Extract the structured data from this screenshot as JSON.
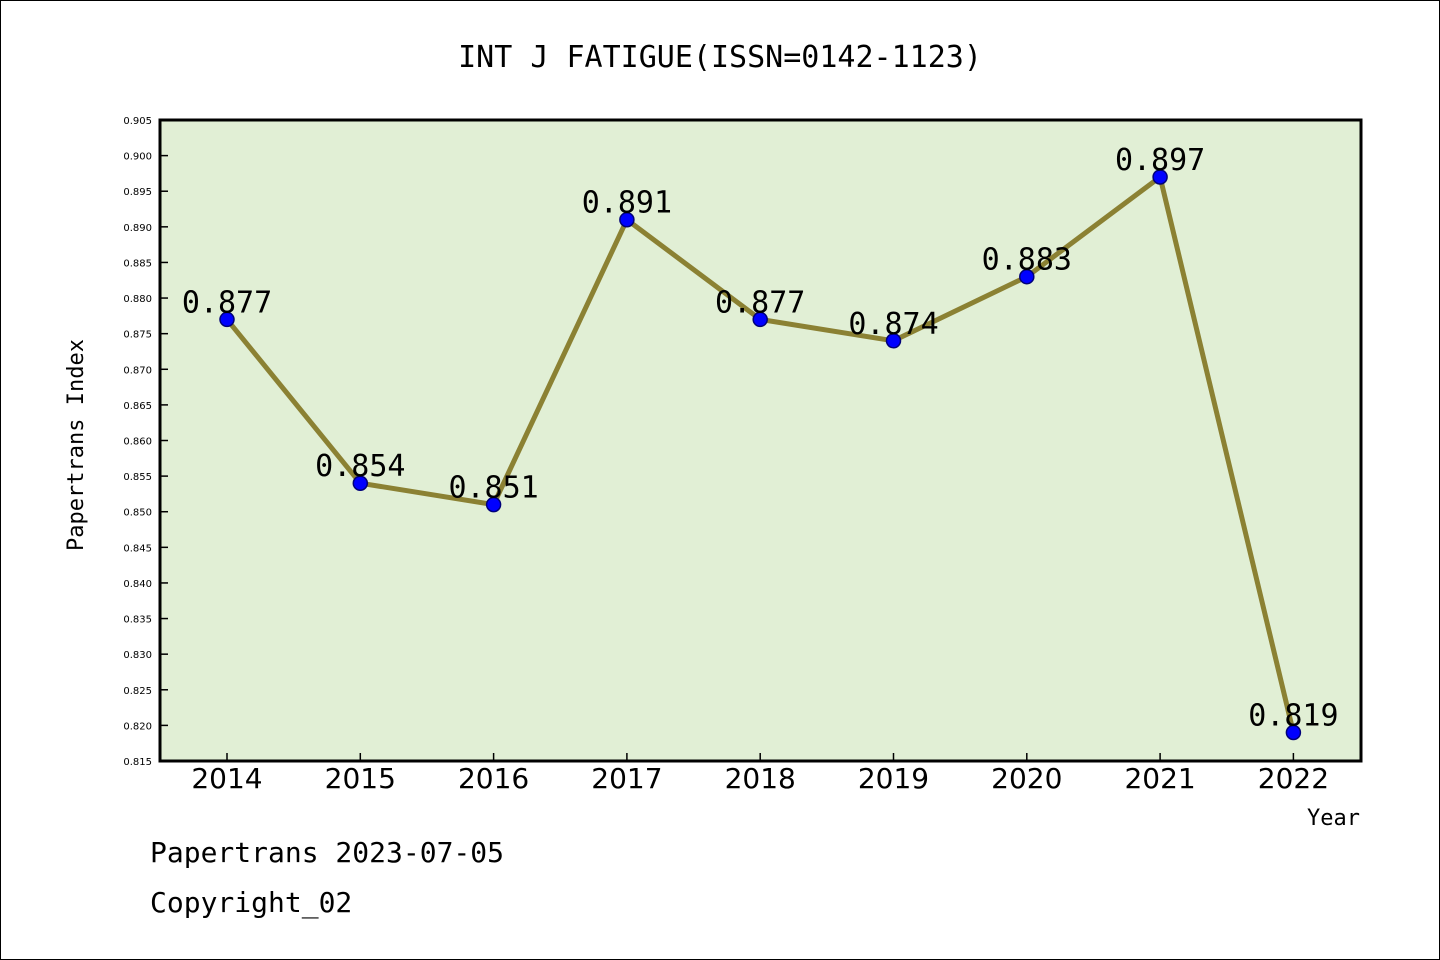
{
  "footer": {
    "line1": "Papertrans 2023-07-05",
    "line2": "Copyright_02"
  },
  "colors": {
    "plot_background": "#e1efd5",
    "line": "#8b8133",
    "marker_fill": "#0000ff",
    "marker_edge": "#00007a"
  },
  "chart_data": {
    "type": "line",
    "title": "INT J FATIGUE(ISSN=0142-1123)",
    "xlabel": "Year",
    "ylabel": "Papertrans Index",
    "categories": [
      "2014",
      "2015",
      "2016",
      "2017",
      "2018",
      "2019",
      "2020",
      "2021",
      "2022"
    ],
    "series": [
      {
        "values": [
          0.877,
          0.854,
          0.851,
          0.891,
          0.877,
          0.874,
          0.883,
          0.897,
          0.819
        ],
        "labels": [
          "0.877",
          "0.854",
          "0.851",
          "0.891",
          "0.877",
          "0.874",
          "0.883",
          "0.897",
          "0.819"
        ]
      }
    ],
    "ylim": [
      0.815,
      0.905
    ],
    "yticks": [
      "0.815",
      "0.820",
      "0.825",
      "0.830",
      "0.835",
      "0.840",
      "0.845",
      "0.850",
      "0.855",
      "0.860",
      "0.865",
      "0.870",
      "0.875",
      "0.880",
      "0.885",
      "0.890",
      "0.895",
      "0.900",
      "0.905"
    ],
    "grid": false,
    "legend": "none"
  }
}
